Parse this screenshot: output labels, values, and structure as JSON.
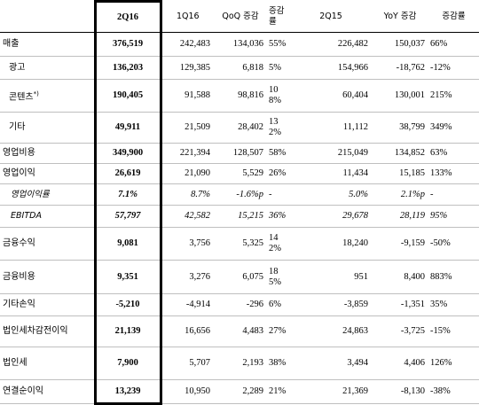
{
  "table": {
    "columns": [
      "2Q16",
      "1Q16",
      "QoQ 증감",
      "증감률",
      "2Q15",
      "YoY 증감",
      "증감률"
    ],
    "rows": [
      {
        "label": "매출",
        "cells": [
          "376,519",
          "242,483",
          "134,036",
          "55%",
          "226,482",
          "150,037",
          "66%"
        ]
      },
      {
        "label": "광고",
        "cells": [
          "136,203",
          "129,385",
          "6,818",
          "5%",
          "154,966",
          "-18,762",
          "-12%"
        ]
      },
      {
        "label": "콘텐츠",
        "note": "*)",
        "cells": [
          "190,405",
          "91,588",
          "98,816",
          "108%",
          "60,404",
          "130,001",
          "215%"
        ]
      },
      {
        "label": "기타",
        "cells": [
          "49,911",
          "21,509",
          "28,402",
          "132%",
          "11,112",
          "38,799",
          "349%"
        ]
      },
      {
        "label": "영업비용",
        "cells": [
          "349,900",
          "221,394",
          "128,507",
          "58%",
          "215,049",
          "134,852",
          "63%"
        ]
      },
      {
        "label": "영업이익",
        "cells": [
          "26,619",
          "21,090",
          "5,529",
          "26%",
          "11,434",
          "15,185",
          "133%"
        ]
      },
      {
        "label": "영업이익률",
        "cells": [
          "7.1%",
          "8.7%",
          "-1.6%p",
          "-",
          "5.0%",
          "2.1%p",
          "-"
        ]
      },
      {
        "label": "EBITDA",
        "cells": [
          "57,797",
          "42,582",
          "15,215",
          "36%",
          "29,678",
          "28,119",
          "95%"
        ]
      },
      {
        "label": "금융수익",
        "cells": [
          "9,081",
          "3,756",
          "5,325",
          "142%",
          "18,240",
          "-9,159",
          "-50%"
        ]
      },
      {
        "label": "금융비용",
        "cells": [
          "9,351",
          "3,276",
          "6,075",
          "185%",
          "951",
          "8,400",
          "883%"
        ]
      },
      {
        "label": "기타손익",
        "cells": [
          "-5,210",
          "-4,914",
          "-296",
          "6%",
          "-3,859",
          "-1,351",
          "35%"
        ]
      },
      {
        "label": "법인세차감전이익",
        "cells": [
          "21,139",
          "16,656",
          "4,483",
          "27%",
          "24,863",
          "-3,725",
          "-15%"
        ]
      },
      {
        "label": "법인세",
        "cells": [
          "7,900",
          "5,707",
          "2,193",
          "38%",
          "3,494",
          "4,406",
          "126%"
        ]
      },
      {
        "label": "연결순이익",
        "cells": [
          "13,239",
          "10,950",
          "2,289",
          "21%",
          "21,369",
          "-8,130",
          "-38%"
        ]
      }
    ]
  }
}
